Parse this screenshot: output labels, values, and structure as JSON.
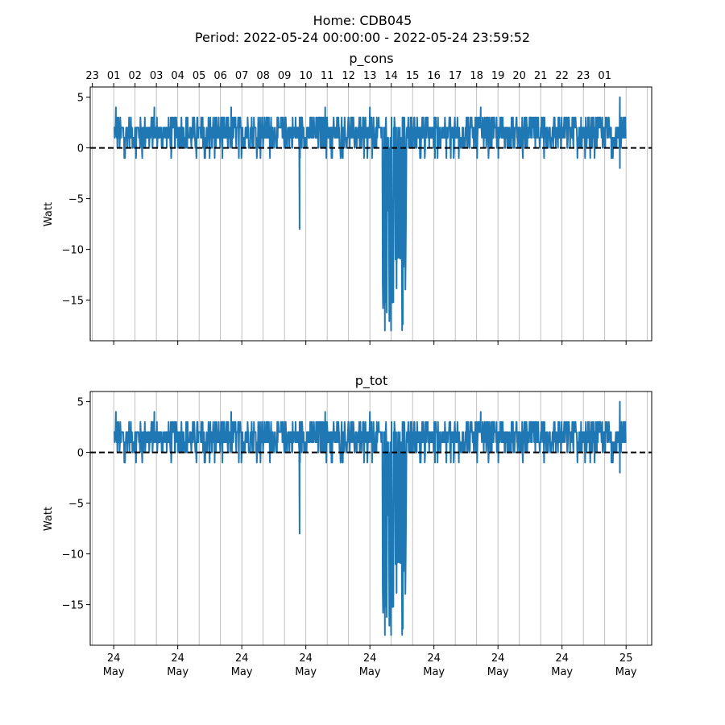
{
  "figure": {
    "title_line1": "Home: CDB045",
    "title_line2": "Period: 2022-05-24 00:00:00 - 2022-05-24 23:59:52"
  },
  "colors": {
    "series": "#1f77b4",
    "zero_line": "#000000",
    "grid": "#b0b0b0"
  },
  "chart_data": [
    {
      "type": "line",
      "title": "p_cons",
      "ylabel": "Watt",
      "yticks": [
        -15,
        -10,
        -5,
        0,
        5
      ],
      "ylim": [
        -19,
        6
      ],
      "xlim_hours": [
        -1.1,
        25.2
      ],
      "top_hour_ticks": [
        "23",
        "01",
        "02",
        "03",
        "04",
        "05",
        "06",
        "07",
        "08",
        "09",
        "10",
        "11",
        "12",
        "13",
        "14",
        "15",
        "16",
        "17",
        "18",
        "19",
        "20",
        "21",
        "22",
        "23",
        "01"
      ],
      "bottom_ticks": [
        {
          "day": "24",
          "month": "May"
        },
        {
          "day": "24",
          "month": "May"
        },
        {
          "day": "24",
          "month": "May"
        },
        {
          "day": "24",
          "month": "May"
        },
        {
          "day": "24",
          "month": "May"
        },
        {
          "day": "24",
          "month": "May"
        },
        {
          "day": "24",
          "month": "May"
        },
        {
          "day": "24",
          "month": "May"
        },
        {
          "day": "25",
          "month": "May"
        }
      ],
      "zero_reference": 0,
      "series": [
        {
          "baseline_range": [
            0,
            3
          ],
          "spikes": [
            {
              "hour": 0.1,
              "value": 4
            },
            {
              "hour": 1.9,
              "value": 4
            },
            {
              "hour": 5.5,
              "value": 4
            },
            {
              "hour": 8.7,
              "value": -8
            },
            {
              "hour": 9.9,
              "value": 4
            },
            {
              "hour": 12.0,
              "value": 4
            },
            {
              "hour": 12.7,
              "value": -18
            },
            {
              "hour": 13.0,
              "value": -18
            },
            {
              "hour": 13.2,
              "value": -11
            },
            {
              "hour": 13.6,
              "value": -9
            },
            {
              "hour": 17.2,
              "value": 4
            },
            {
              "hour": 23.7,
              "value": 5
            },
            {
              "hour": 23.7,
              "value": -2
            }
          ]
        }
      ]
    },
    {
      "type": "line",
      "title": "p_tot",
      "ylabel": "Watt",
      "yticks": [
        -15,
        -10,
        -5,
        0,
        5
      ],
      "ylim": [
        -19,
        6
      ],
      "xlim_hours": [
        -1.1,
        25.2
      ],
      "bottom_ticks": [
        {
          "day": "24",
          "month": "May"
        },
        {
          "day": "24",
          "month": "May"
        },
        {
          "day": "24",
          "month": "May"
        },
        {
          "day": "24",
          "month": "May"
        },
        {
          "day": "24",
          "month": "May"
        },
        {
          "day": "24",
          "month": "May"
        },
        {
          "day": "24",
          "month": "May"
        },
        {
          "day": "24",
          "month": "May"
        },
        {
          "day": "25",
          "month": "May"
        }
      ],
      "zero_reference": 0,
      "series": [
        {
          "baseline_range": [
            0,
            3
          ],
          "spikes": [
            {
              "hour": 0.1,
              "value": 4
            },
            {
              "hour": 1.9,
              "value": 4
            },
            {
              "hour": 5.5,
              "value": 4
            },
            {
              "hour": 8.7,
              "value": -8
            },
            {
              "hour": 9.9,
              "value": 4
            },
            {
              "hour": 12.0,
              "value": 4
            },
            {
              "hour": 12.7,
              "value": -18
            },
            {
              "hour": 13.0,
              "value": -18
            },
            {
              "hour": 13.2,
              "value": -11
            },
            {
              "hour": 13.6,
              "value": -9
            },
            {
              "hour": 17.2,
              "value": 4
            },
            {
              "hour": 23.7,
              "value": 5
            },
            {
              "hour": 23.7,
              "value": -2
            }
          ]
        }
      ]
    }
  ]
}
